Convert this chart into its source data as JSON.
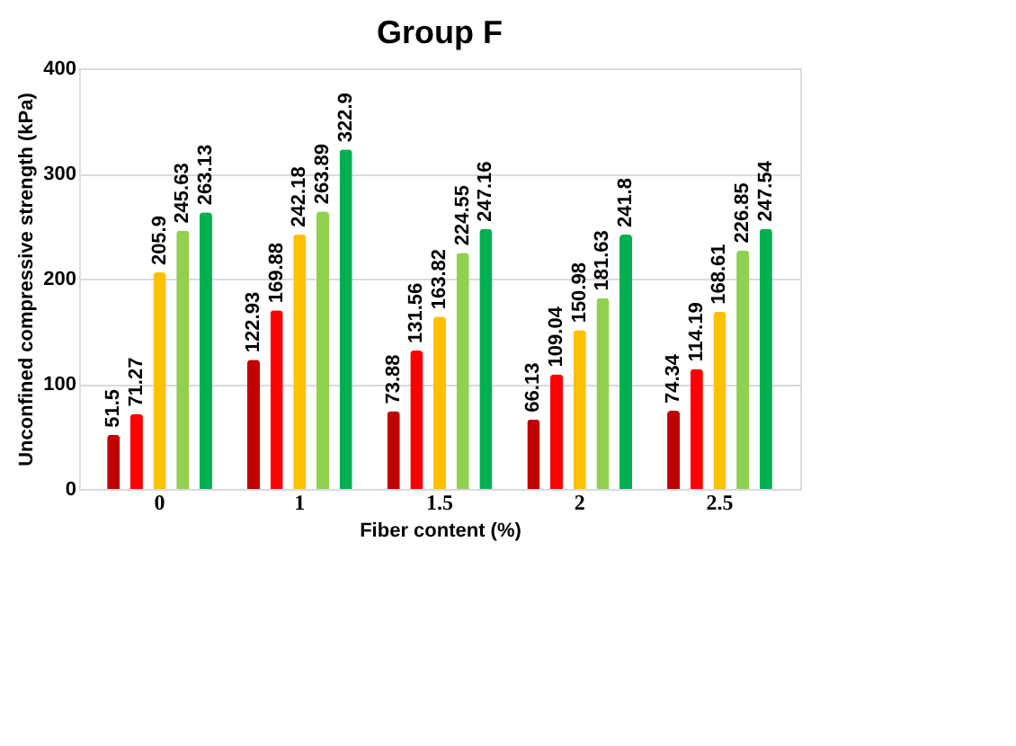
{
  "chart_data": {
    "type": "bar",
    "title": "Group F",
    "xlabel": "Fiber content (%)",
    "ylabel": "Unconfined compressive strength (kPa)",
    "categories": [
      "0",
      "1",
      "1.5",
      "2",
      "2.5"
    ],
    "series": [
      {
        "color": "#c00000",
        "values": [
          51.5,
          122.93,
          73.88,
          66.13,
          74.34
        ]
      },
      {
        "color": "#ff0000",
        "values": [
          71.27,
          169.88,
          131.56,
          109.04,
          114.19
        ]
      },
      {
        "color": "#ffc000",
        "values": [
          205.9,
          242.18,
          163.82,
          150.98,
          168.61
        ]
      },
      {
        "color": "#92d050",
        "values": [
          245.63,
          263.89,
          224.55,
          181.63,
          226.85
        ]
      },
      {
        "color": "#00b050",
        "values": [
          263.13,
          322.9,
          247.16,
          241.8,
          247.54
        ]
      }
    ],
    "ylim": [
      0,
      400
    ],
    "yticks": [
      0,
      100,
      200,
      300,
      400
    ],
    "grid": "y",
    "data_labels": true
  }
}
